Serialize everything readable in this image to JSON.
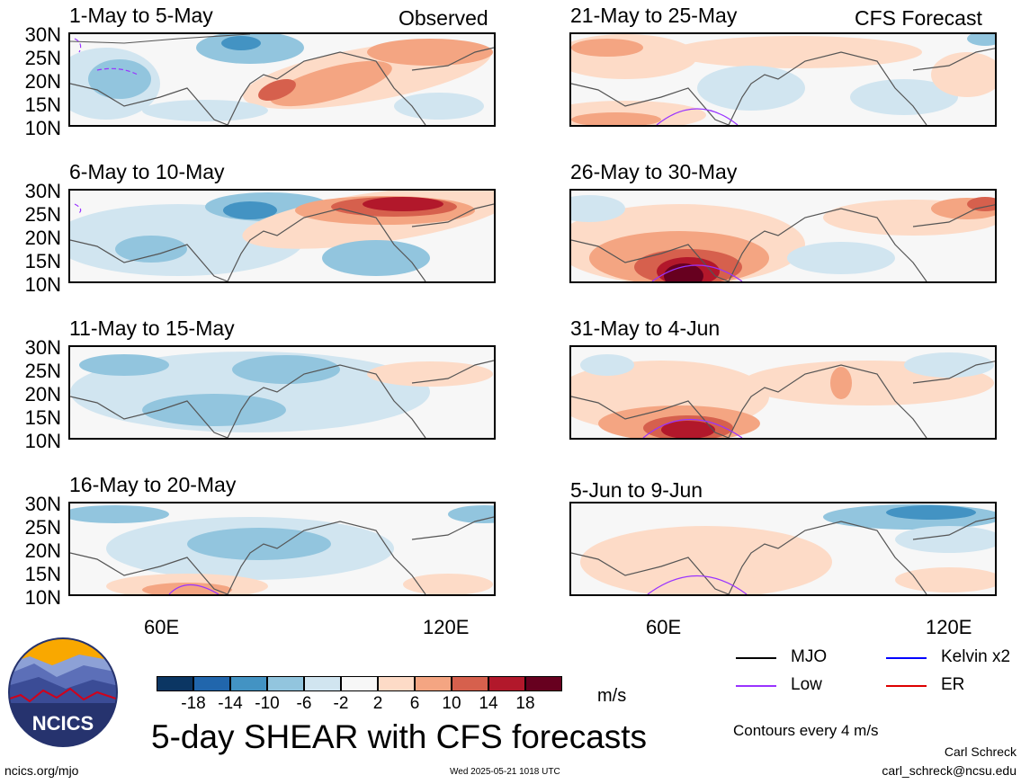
{
  "headers": {
    "observed": "Observed",
    "forecast": "CFS Forecast"
  },
  "panels": [
    {
      "title": "1-May to 5-May",
      "column": "observed"
    },
    {
      "title": "6-May to 10-May",
      "column": "observed"
    },
    {
      "title": "11-May to 15-May",
      "column": "observed"
    },
    {
      "title": "16-May to 20-May",
      "column": "observed"
    },
    {
      "title": "21-May to 25-May",
      "column": "forecast"
    },
    {
      "title": "26-May to 30-May",
      "column": "forecast"
    },
    {
      "title": "31-May to 4-Jun",
      "column": "forecast"
    },
    {
      "title": "5-Jun to 9-Jun",
      "column": "forecast"
    }
  ],
  "lat_labels": [
    "30N",
    "25N",
    "20N",
    "15N",
    "10N"
  ],
  "lon_labels": [
    "60E",
    "120E"
  ],
  "colorbar": {
    "ticks": [
      "-18",
      "-14",
      "-10",
      "-6",
      "-2",
      "2",
      "6",
      "10",
      "14",
      "18"
    ],
    "colors": [
      "#0b3663",
      "#2166ac",
      "#4393c3",
      "#92c5de",
      "#d1e5f0",
      "#f7f7f7",
      "#fddbc7",
      "#f4a582",
      "#d6604d",
      "#b2182b",
      "#67001f"
    ],
    "unit": "m/s"
  },
  "legend": {
    "items": [
      {
        "label": "MJO",
        "color": "#000000"
      },
      {
        "label": "Kelvin x2",
        "color": "#0000ff"
      },
      {
        "label": "Low",
        "color": "#9933ff"
      },
      {
        "label": "ER",
        "color": "#dd0000"
      }
    ],
    "contours": "Contours every 4 m/s"
  },
  "title": "5-day SHEAR with CFS forecasts",
  "footer": {
    "logo_text": "NCICS",
    "url": "ncics.org/mjo",
    "timestamp": "Wed 2025-05-21 1018 UTC",
    "author": "Carl Schreck",
    "email": "carl_schreck@ncsu.edu"
  }
}
